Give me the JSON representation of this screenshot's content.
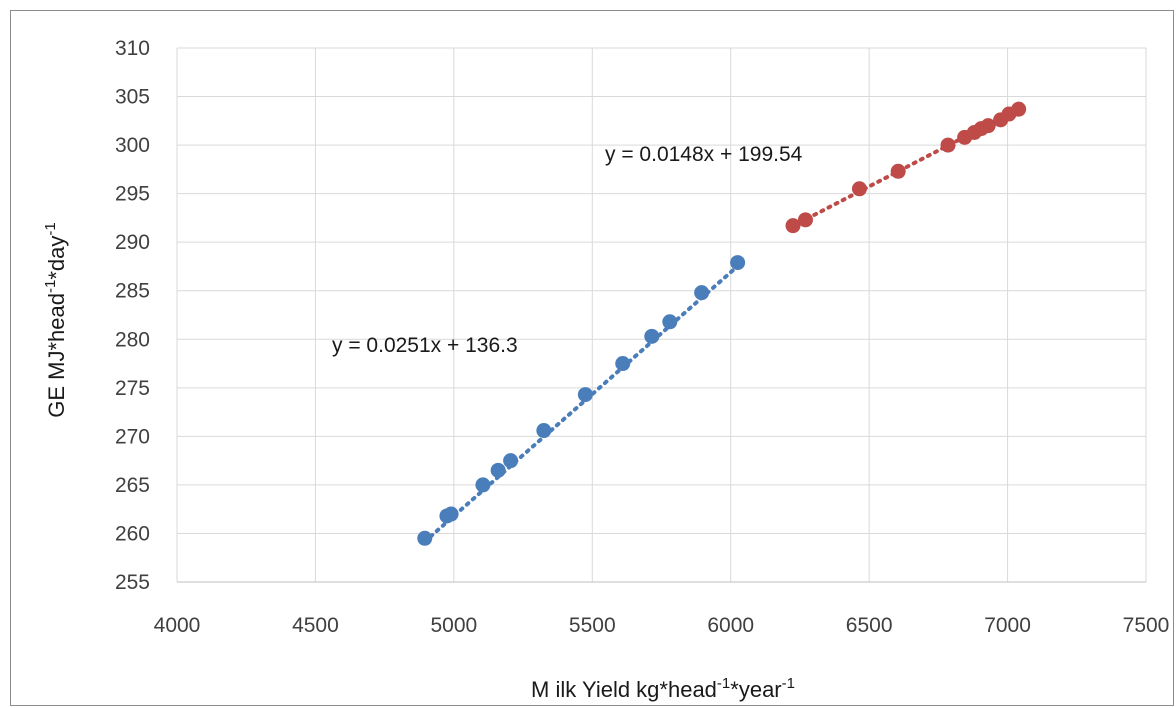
{
  "chart_data": {
    "type": "scatter",
    "xlabel": {
      "text": "M ilk Yield kg*head",
      "sup1": "-1",
      "mid": "*year",
      "sup2": "-1"
    },
    "ylabel": {
      "text": "GE  MJ*head",
      "sup1": "-1",
      "mid": "*day",
      "sup2": "-1"
    },
    "xlim": [
      4000,
      7500
    ],
    "ylim": [
      255,
      310
    ],
    "x_ticks": [
      "4000",
      "4500",
      "5000",
      "5500",
      "6000",
      "6500",
      "7000",
      "7500"
    ],
    "y_ticks": [
      "255",
      "260",
      "265",
      "270",
      "275",
      "280",
      "285",
      "290",
      "295",
      "300",
      "305",
      "310"
    ],
    "grid": true,
    "series": [
      {
        "color": "#4a7ebb",
        "trendline": {
          "slope": 0.0251,
          "intercept": 136.3,
          "label": "y = 0.0251x  + 136.3"
        },
        "points": [
          [
            4895,
            259.5
          ],
          [
            4975,
            261.8
          ],
          [
            4990,
            262.0
          ],
          [
            5105,
            265.0
          ],
          [
            5160,
            266.5
          ],
          [
            5205,
            267.5
          ],
          [
            5325,
            270.6
          ],
          [
            5475,
            274.3
          ],
          [
            5610,
            277.5
          ],
          [
            5715,
            280.3
          ],
          [
            5780,
            281.8
          ],
          [
            5895,
            284.8
          ],
          [
            6025,
            287.9
          ]
        ]
      },
      {
        "color": "#be4b48",
        "trendline": {
          "slope": 0.0148,
          "intercept": 199.54,
          "label": "y = 0.0148x  + 199.54"
        },
        "points": [
          [
            6225,
            291.7
          ],
          [
            6270,
            292.3
          ],
          [
            6465,
            295.5
          ],
          [
            6605,
            297.3
          ],
          [
            6785,
            300.0
          ],
          [
            6845,
            300.8
          ],
          [
            6880,
            301.3
          ],
          [
            6905,
            301.7
          ],
          [
            6930,
            302.0
          ],
          [
            6975,
            302.6
          ],
          [
            7005,
            303.2
          ],
          [
            7040,
            303.7
          ]
        ]
      }
    ]
  }
}
